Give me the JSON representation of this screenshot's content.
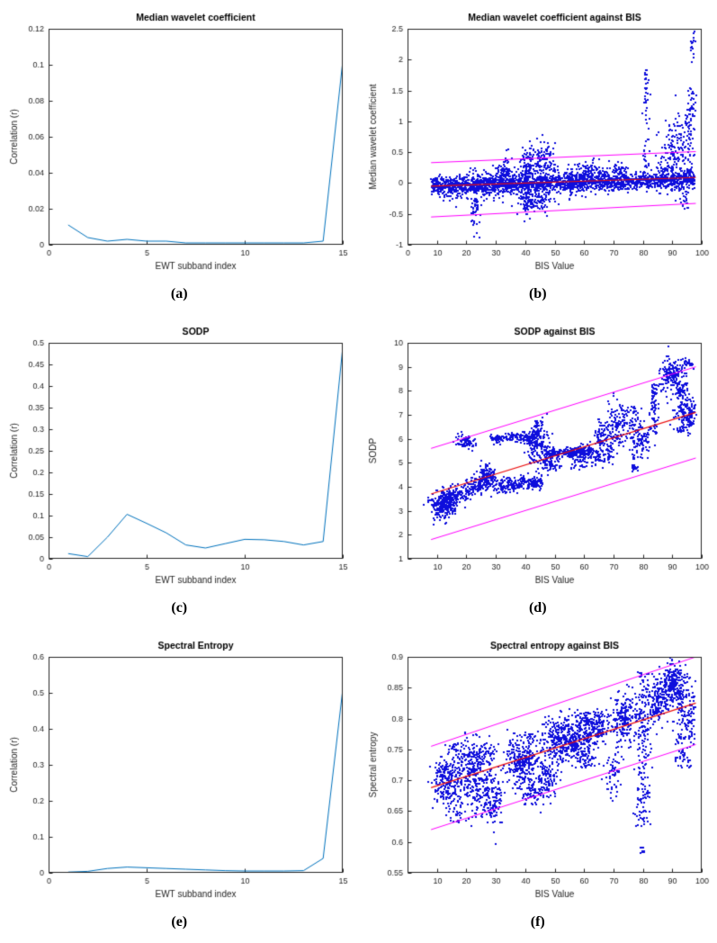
{
  "page": {
    "background": "#ffffff"
  },
  "captions": [
    "(a)",
    "(b)",
    "(c)",
    "(d)",
    "(e)",
    "(f)"
  ],
  "colors": {
    "background": "#ffffff",
    "axis": "#262626",
    "tick_label": "#262626",
    "title": "#000000",
    "line_series": "#0072BD",
    "scatter": "#0e0edc",
    "fit": "#eb1010",
    "bound": "#ff00ff"
  },
  "chart_data": [
    {
      "id": "a",
      "type": "line",
      "title": "Median wavelet coefficient",
      "xlabel": "EWT subband index",
      "ylabel": "Correlation (r)",
      "xlim": [
        0,
        15
      ],
      "ylim": [
        0,
        0.12
      ],
      "xticks": [
        0,
        5,
        10,
        15
      ],
      "yticks": [
        0,
        0.02,
        0.04,
        0.06,
        0.08,
        0.1,
        0.12
      ],
      "x": [
        1,
        2,
        3,
        4,
        5,
        6,
        7,
        8,
        9,
        10,
        11,
        12,
        13,
        14,
        15
      ],
      "y": [
        0.011,
        0.004,
        0.002,
        0.003,
        0.002,
        0.002,
        0.001,
        0.001,
        0.001,
        0.001,
        0.001,
        0.001,
        0.001,
        0.002,
        0.102
      ]
    },
    {
      "id": "b",
      "type": "scatter",
      "title": "Median wavelet coefficient against BIS",
      "xlabel": "BIS Value",
      "ylabel": "Median wavelet coefficient",
      "xlim": [
        0,
        100
      ],
      "ylim": [
        -1,
        2.5
      ],
      "xticks": [
        0,
        10,
        20,
        30,
        40,
        50,
        60,
        70,
        80,
        90,
        100
      ],
      "yticks": [
        -1,
        -0.5,
        0,
        0.5,
        1,
        1.5,
        2,
        2.5
      ],
      "seed": 7,
      "fit_line": [
        [
          8,
          -0.05
        ],
        [
          98,
          0.09
        ]
      ],
      "bounds": [
        [
          [
            8,
            0.33
          ],
          [
            98,
            0.51
          ]
        ],
        [
          [
            8,
            -0.55
          ],
          [
            98,
            -0.33
          ]
        ]
      ],
      "groups": [
        {
          "kind": "band",
          "x0": 8,
          "x1": 98,
          "y0": -0.04,
          "y1": 0.05,
          "sy": 0.07,
          "n": 1700
        },
        {
          "kind": "band",
          "x0": 10,
          "x1": 60,
          "y0": -0.05,
          "y1": 0.0,
          "sy": 0.12,
          "n": 500
        },
        {
          "kind": "gauss",
          "x": 23,
          "y": -0.45,
          "sx": 0.7,
          "sy": 0.18,
          "n": 45
        },
        {
          "kind": "gauss",
          "x": 33,
          "y": 0.18,
          "sx": 1.5,
          "sy": 0.12,
          "n": 70
        },
        {
          "kind": "gauss",
          "x": 41,
          "y": 0.3,
          "sx": 1.5,
          "sy": 0.18,
          "n": 110
        },
        {
          "kind": "gauss",
          "x": 41,
          "y": -0.3,
          "sx": 1.5,
          "sy": 0.12,
          "n": 70
        },
        {
          "kind": "gauss",
          "x": 47,
          "y": 0.35,
          "sx": 1.8,
          "sy": 0.15,
          "n": 90
        },
        {
          "kind": "gauss",
          "x": 45,
          "y": -0.28,
          "sx": 2.5,
          "sy": 0.1,
          "n": 60
        },
        {
          "kind": "band",
          "x0": 55,
          "x1": 75,
          "y0": 0.15,
          "y1": 0.2,
          "sy": 0.08,
          "n": 150
        },
        {
          "kind": "gauss",
          "x": 88,
          "y": 0.15,
          "sx": 2,
          "sy": 0.15,
          "n": 80
        },
        {
          "kind": "column",
          "x": 81,
          "y0": -0.1,
          "y1": 1.9,
          "sx": 0.5,
          "n": 60
        },
        {
          "kind": "gauss",
          "x": 90,
          "y": 0.5,
          "sx": 1.5,
          "sy": 0.3,
          "n": 80
        },
        {
          "kind": "column",
          "x": 94,
          "y0": -0.45,
          "y1": 1.1,
          "sx": 1.2,
          "n": 110
        },
        {
          "kind": "column",
          "x": 96.5,
          "y0": 0.0,
          "y1": 1.55,
          "sx": 0.8,
          "n": 70
        },
        {
          "kind": "gauss",
          "x": 97,
          "y": 2.2,
          "sx": 0.5,
          "sy": 0.12,
          "n": 18
        }
      ]
    },
    {
      "id": "c",
      "type": "line",
      "title": "SODP",
      "xlabel": "EWT subband index",
      "ylabel": "Correlation (r)",
      "xlim": [
        0,
        15
      ],
      "ylim": [
        0,
        0.5
      ],
      "xticks": [
        0,
        5,
        10,
        15
      ],
      "yticks": [
        0,
        0.05,
        0.1,
        0.15,
        0.2,
        0.25,
        0.3,
        0.35,
        0.4,
        0.45,
        0.5
      ],
      "x": [
        1,
        2,
        3,
        4,
        5,
        6,
        7,
        8,
        9,
        10,
        11,
        12,
        13,
        14,
        15
      ],
      "y": [
        0.012,
        0.005,
        0.05,
        0.103,
        0.082,
        0.06,
        0.032,
        0.025,
        0.035,
        0.045,
        0.044,
        0.04,
        0.032,
        0.04,
        0.49
      ]
    },
    {
      "id": "d",
      "type": "scatter",
      "title": "SODP against BIS",
      "xlabel": "BIS Value",
      "ylabel": "SODP",
      "xlim": [
        0,
        100
      ],
      "ylim": [
        1,
        10
      ],
      "xticks": [
        10,
        20,
        30,
        40,
        50,
        60,
        70,
        80,
        90,
        100
      ],
      "yticks": [
        1,
        2,
        3,
        4,
        5,
        6,
        7,
        8,
        9,
        10
      ],
      "seed": 13,
      "fit_line": [
        [
          8,
          3.7
        ],
        [
          98,
          7.1
        ]
      ],
      "bounds": [
        [
          [
            8,
            5.6
          ],
          [
            98,
            9.0
          ]
        ],
        [
          [
            8,
            1.8
          ],
          [
            98,
            5.2
          ]
        ]
      ],
      "groups": [
        {
          "kind": "gauss",
          "x": 12,
          "y": 3.3,
          "sx": 2.2,
          "sy": 0.3,
          "n": 260
        },
        {
          "kind": "band",
          "x0": 14,
          "x1": 30,
          "y0": 3.5,
          "y1": 4.35,
          "sy": 0.22,
          "n": 260
        },
        {
          "kind": "gauss",
          "x": 20,
          "y": 5.85,
          "sx": 1.8,
          "sy": 0.13,
          "n": 70
        },
        {
          "kind": "gauss",
          "x": 27,
          "y": 4.5,
          "sx": 1.2,
          "sy": 0.25,
          "n": 60
        },
        {
          "kind": "band",
          "x0": 28,
          "x1": 44,
          "y0": 6.0,
          "y1": 6.1,
          "sy": 0.1,
          "n": 150
        },
        {
          "kind": "band",
          "x0": 30,
          "x1": 46,
          "y0": 4.0,
          "y1": 4.25,
          "sy": 0.16,
          "n": 220
        },
        {
          "kind": "gauss",
          "x": 44,
          "y": 5.9,
          "sx": 2.2,
          "sy": 0.45,
          "n": 170
        },
        {
          "kind": "gauss",
          "x": 48,
          "y": 5.05,
          "sx": 1.8,
          "sy": 0.25,
          "n": 90
        },
        {
          "kind": "band",
          "x0": 47,
          "x1": 63,
          "y0": 5.4,
          "y1": 5.5,
          "sy": 0.1,
          "n": 240
        },
        {
          "kind": "band",
          "x0": 55,
          "x1": 70,
          "y0": 5.1,
          "y1": 5.4,
          "sy": 0.2,
          "n": 140
        },
        {
          "kind": "gauss",
          "x": 66,
          "y": 6.1,
          "sx": 2,
          "sy": 0.3,
          "n": 80
        },
        {
          "kind": "gauss",
          "x": 72,
          "y": 6.6,
          "sx": 2.2,
          "sy": 0.45,
          "n": 130
        },
        {
          "kind": "column",
          "x": 77,
          "y0": 4.6,
          "y1": 7.4,
          "sx": 0.7,
          "n": 70
        },
        {
          "kind": "gauss",
          "x": 80,
          "y": 5.9,
          "sx": 1.3,
          "sy": 0.4,
          "n": 70
        },
        {
          "kind": "column",
          "x": 84,
          "y0": 6.2,
          "y1": 8.3,
          "sx": 0.9,
          "n": 80
        },
        {
          "kind": "gauss",
          "x": 90,
          "y": 8.6,
          "sx": 2.2,
          "sy": 0.35,
          "n": 160
        },
        {
          "kind": "column",
          "x": 93,
          "y0": 6.3,
          "y1": 8.4,
          "sx": 1.3,
          "n": 120
        },
        {
          "kind": "gauss",
          "x": 96,
          "y": 7.0,
          "sx": 0.9,
          "sy": 0.35,
          "n": 90
        },
        {
          "kind": "gauss",
          "x": 95,
          "y": 9.15,
          "sx": 1.2,
          "sy": 0.12,
          "n": 25
        }
      ]
    },
    {
      "id": "e",
      "type": "line",
      "title": "Spectral Entropy",
      "xlabel": "EWT subband index",
      "ylabel": "Correlation (r)",
      "xlim": [
        0,
        15
      ],
      "ylim": [
        0,
        0.6
      ],
      "xticks": [
        0,
        5,
        10,
        15
      ],
      "yticks": [
        0,
        0.1,
        0.2,
        0.3,
        0.4,
        0.5,
        0.6
      ],
      "x": [
        1,
        2,
        3,
        4,
        5,
        6,
        7,
        8,
        9,
        10,
        11,
        12,
        13,
        14,
        15
      ],
      "y": [
        0.002,
        0.004,
        0.012,
        0.016,
        0.014,
        0.012,
        0.01,
        0.008,
        0.006,
        0.005,
        0.005,
        0.005,
        0.006,
        0.04,
        0.51
      ]
    },
    {
      "id": "f",
      "type": "scatter",
      "title": "Spectral entropy against BIS",
      "xlabel": "BIS Value",
      "ylabel": "Spectral entropy",
      "xlim": [
        0,
        100
      ],
      "ylim": [
        0.55,
        0.9
      ],
      "xticks": [
        10,
        20,
        30,
        40,
        50,
        60,
        70,
        80,
        90,
        100
      ],
      "yticks": [
        0.55,
        0.6,
        0.65,
        0.7,
        0.75,
        0.8,
        0.85,
        0.9
      ],
      "seed": 21,
      "fit_line": [
        [
          8,
          0.688
        ],
        [
          98,
          0.825
        ]
      ],
      "bounds": [
        [
          [
            8,
            0.755
          ],
          [
            98,
            0.9
          ]
        ],
        [
          [
            8,
            0.62
          ],
          [
            98,
            0.758
          ]
        ]
      ],
      "groups": [
        {
          "kind": "gauss",
          "x": 13,
          "y": 0.7,
          "sx": 2.2,
          "sy": 0.022,
          "n": 190
        },
        {
          "kind": "column",
          "x": 17,
          "y0": 0.63,
          "y1": 0.76,
          "sx": 1.4,
          "n": 120
        },
        {
          "kind": "gauss",
          "x": 22,
          "y": 0.718,
          "sx": 2.2,
          "sy": 0.028,
          "n": 230
        },
        {
          "kind": "column",
          "x": 27,
          "y0": 0.64,
          "y1": 0.76,
          "sx": 1.8,
          "n": 150
        },
        {
          "kind": "gauss",
          "x": 30,
          "y": 0.66,
          "sx": 1.3,
          "sy": 0.018,
          "n": 70
        },
        {
          "kind": "gauss",
          "x": 38,
          "y": 0.73,
          "sx": 2.2,
          "sy": 0.02,
          "n": 190
        },
        {
          "kind": "column",
          "x": 42,
          "y0": 0.66,
          "y1": 0.78,
          "sx": 1.8,
          "n": 170
        },
        {
          "kind": "gauss",
          "x": 47,
          "y": 0.705,
          "sx": 1.8,
          "sy": 0.022,
          "n": 110
        },
        {
          "kind": "gauss",
          "x": 51,
          "y": 0.76,
          "sx": 2.2,
          "sy": 0.02,
          "n": 210
        },
        {
          "kind": "gauss",
          "x": 57,
          "y": 0.77,
          "sx": 2.2,
          "sy": 0.018,
          "n": 190
        },
        {
          "kind": "column",
          "x": 61,
          "y0": 0.72,
          "y1": 0.81,
          "sx": 1.8,
          "n": 150
        },
        {
          "kind": "gauss",
          "x": 65,
          "y": 0.79,
          "sx": 1.8,
          "sy": 0.015,
          "n": 110
        },
        {
          "kind": "gauss",
          "x": 70,
          "y": 0.715,
          "sx": 1.4,
          "sy": 0.02,
          "n": 60
        },
        {
          "kind": "gauss",
          "x": 74,
          "y": 0.8,
          "sx": 2.2,
          "sy": 0.022,
          "n": 210
        },
        {
          "kind": "column",
          "x": 80,
          "y0": 0.625,
          "y1": 0.88,
          "sx": 1.3,
          "n": 190
        },
        {
          "kind": "gauss",
          "x": 80,
          "y": 0.587,
          "sx": 0.4,
          "sy": 0.004,
          "n": 8
        },
        {
          "kind": "gauss",
          "x": 85,
          "y": 0.83,
          "sx": 1.8,
          "sy": 0.02,
          "n": 170
        },
        {
          "kind": "gauss",
          "x": 90,
          "y": 0.858,
          "sx": 1.8,
          "sy": 0.018,
          "n": 190
        },
        {
          "kind": "column",
          "x": 93,
          "y0": 0.72,
          "y1": 0.888,
          "sx": 1.8,
          "n": 140
        },
        {
          "kind": "gauss",
          "x": 96,
          "y": 0.8,
          "sx": 0.9,
          "sy": 0.028,
          "n": 60
        }
      ]
    }
  ]
}
